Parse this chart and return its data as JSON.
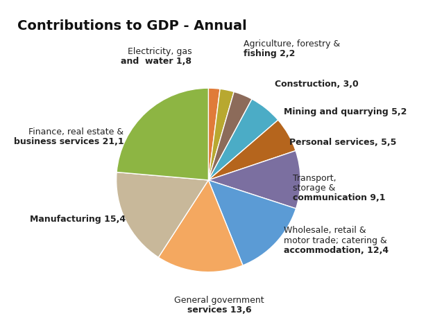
{
  "title": "Contributions to GDP - Annual",
  "segments_clockwise": [
    {
      "label": "Electricity, gas\nand  water",
      "value": 1.8,
      "color": "#e07b39",
      "value_str": "1,8"
    },
    {
      "label": "Agriculture, forestry &\nfishing",
      "value": 2.2,
      "color": "#b8a830",
      "value_str": "2,2"
    },
    {
      "label": "Construction,",
      "value": 3.0,
      "color": "#8c6b5a",
      "value_str": "3,0"
    },
    {
      "label": "Mining and quarrying",
      "value": 5.2,
      "color": "#4bacc6",
      "value_str": "5,2"
    },
    {
      "label": "Personal services,\n",
      "value": 5.5,
      "color": "#b5651d",
      "value_str": "5,5"
    },
    {
      "label": "Transport,\nstorage &\ncommunication",
      "value": 9.1,
      "color": "#7b6fa0",
      "value_str": "9,1"
    },
    {
      "label": "Wholesale, retail &\nmotor trade; catering &\naccommodation,",
      "value": 12.4,
      "color": "#5b9bd5",
      "value_str": "12,4"
    },
    {
      "label": "General government\nservices",
      "value": 13.6,
      "color": "#f4a860",
      "value_str": "13,6"
    },
    {
      "label": "Manufacturing\n",
      "value": 15.4,
      "color": "#c8b89a",
      "value_str": "15,4"
    },
    {
      "label": "Finance, real estate &\nbusiness services",
      "value": 21.1,
      "color": "#8db543",
      "value_str": "21,1"
    }
  ],
  "background_color": "#ffffff",
  "title_fontsize": 14,
  "label_fontsize": 9.0
}
